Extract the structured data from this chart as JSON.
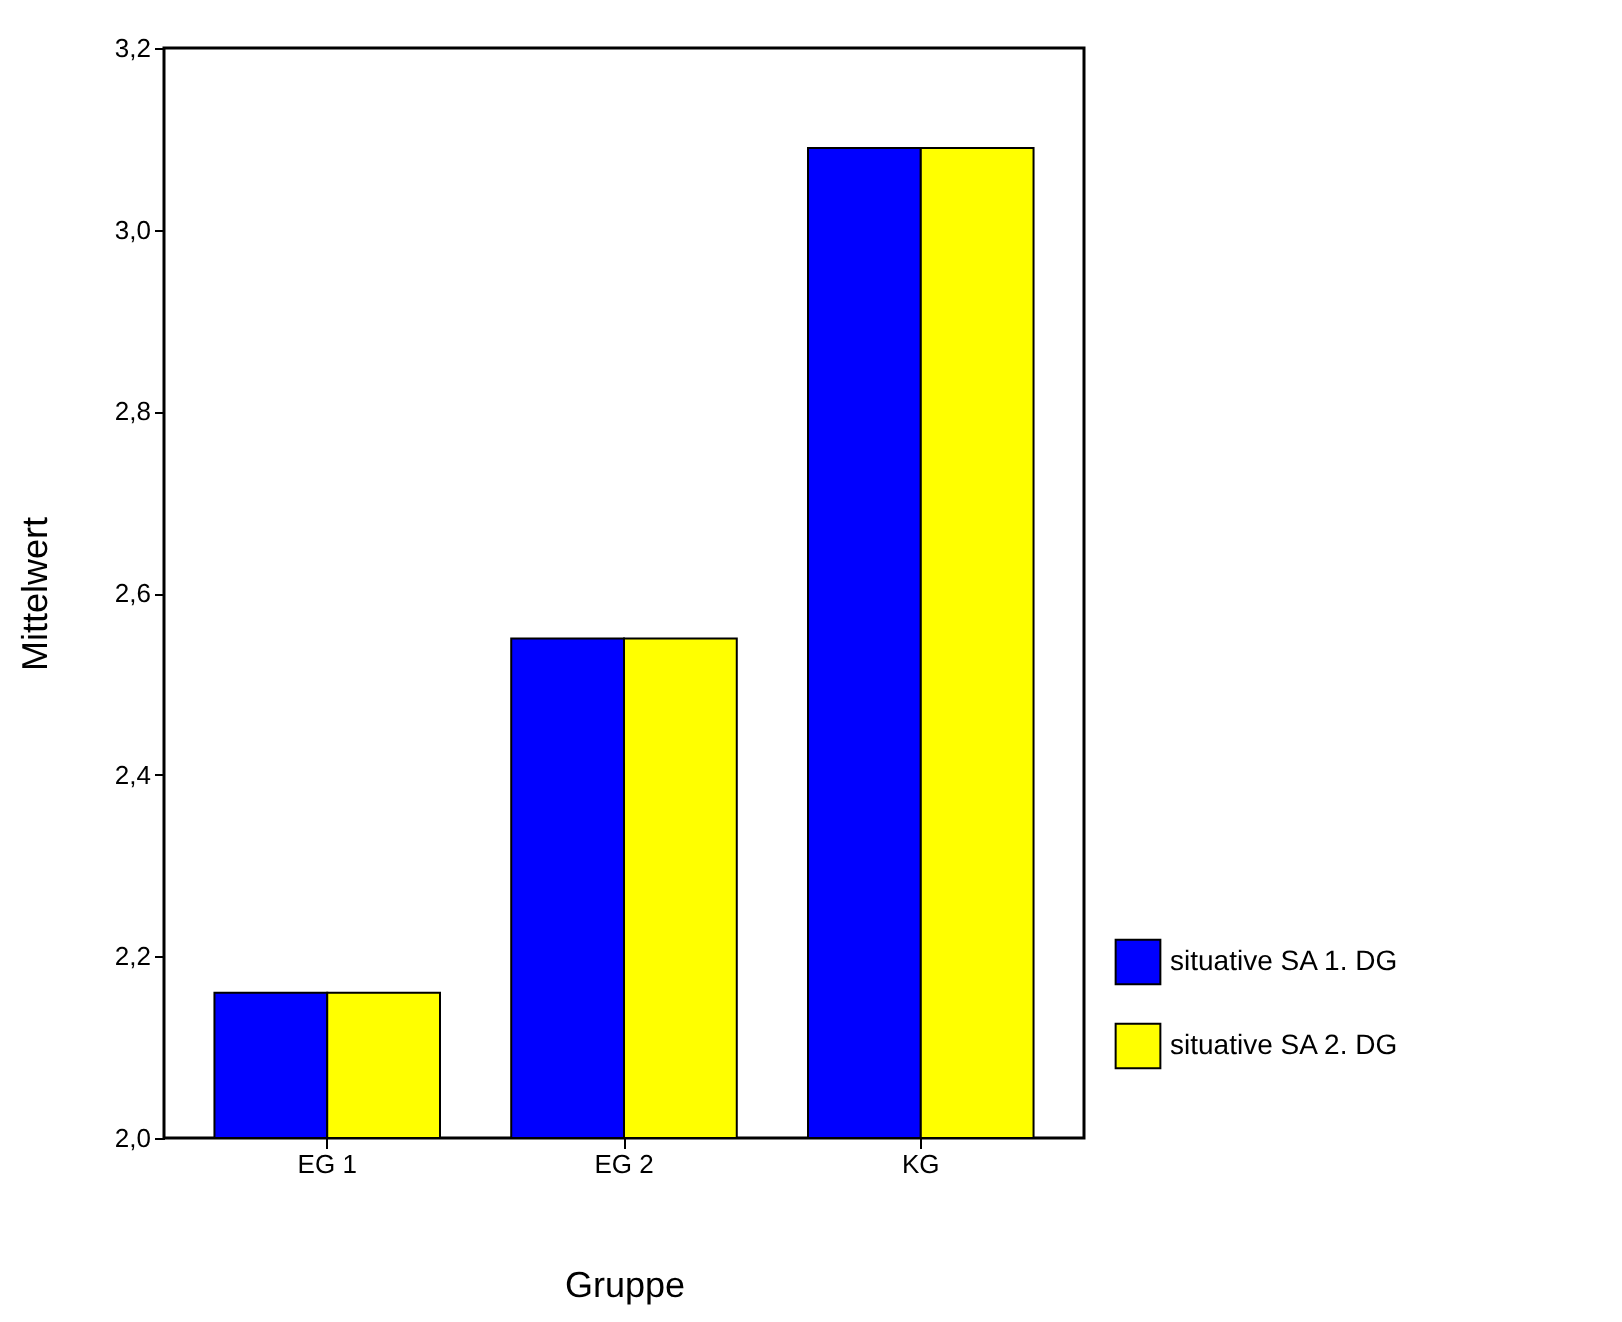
{
  "chart_data": {
    "type": "bar",
    "xlabel": "Gruppe",
    "ylabel": "Mittelwert",
    "categories": [
      "EG 1",
      "EG 2",
      "KG"
    ],
    "series": [
      {
        "name": "situative SA 1. DG",
        "color": "#0000ff",
        "values": [
          2.16,
          2.55,
          3.09
        ]
      },
      {
        "name": "situative SA 2. DG",
        "color": "#ffff00",
        "values": [
          2.16,
          2.55,
          3.09
        ]
      }
    ],
    "ylim": [
      2.0,
      3.2
    ],
    "yticks": [
      {
        "value": 2.0,
        "label": "2,0"
      },
      {
        "value": 2.2,
        "label": "2,2"
      },
      {
        "value": 2.4,
        "label": "2,4"
      },
      {
        "value": 2.6,
        "label": "2,6"
      },
      {
        "value": 2.8,
        "label": "2,8"
      },
      {
        "value": 3.0,
        "label": "3,0"
      },
      {
        "value": 3.2,
        "label": "3,2"
      }
    ],
    "grid": false,
    "legend": "right"
  }
}
